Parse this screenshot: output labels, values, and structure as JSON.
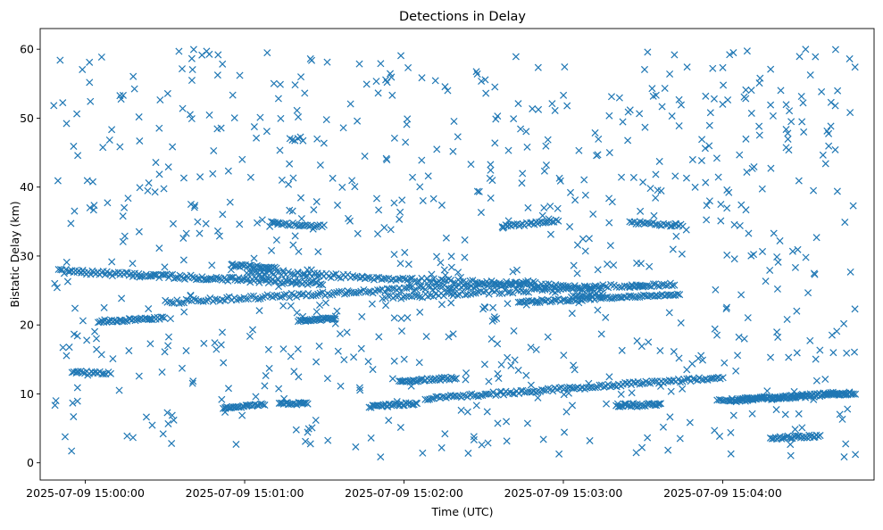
{
  "chart_data": {
    "type": "scatter",
    "title": "Detections in Delay",
    "xlabel": "Time (UTC)",
    "ylabel": "Bistatic Delay (km)",
    "marker": "x",
    "color": "#1f77b4",
    "grid": false,
    "xlim_seconds": [
      -17,
      297
    ],
    "ylim": [
      -2.5,
      63
    ],
    "x_tick_seconds": [
      0,
      60,
      120,
      180,
      240
    ],
    "x_tick_labels": [
      "2025-07-09 15:00:00",
      "2025-07-09 15:01:00",
      "2025-07-09 15:02:00",
      "2025-07-09 15:03:00",
      "2025-07-09 15:04:00"
    ],
    "y_ticks": [
      0,
      10,
      20,
      30,
      40,
      50,
      60
    ],
    "tracks": [
      {
        "x": [
          -10,
          90
        ],
        "y": [
          27.8,
          26.0
        ],
        "step": 0.7,
        "jitter": 0.3
      },
      {
        "x": [
          62,
          195
        ],
        "y": [
          27.7,
          25.3
        ],
        "step": 0.9,
        "jitter": 0.3
      },
      {
        "x": [
          30,
          170
        ],
        "y": [
          23.3,
          26.2
        ],
        "step": 0.9,
        "jitter": 0.3
      },
      {
        "x": [
          112,
          210
        ],
        "y": [
          24.0,
          25.8
        ],
        "step": 1.0,
        "jitter": 0.3
      },
      {
        "x": [
          163,
          224
        ],
        "y": [
          23.3,
          24.4
        ],
        "step": 0.8,
        "jitter": 0.2
      },
      {
        "x": [
          5,
          30
        ],
        "y": [
          20.5,
          21.0
        ],
        "step": 0.6,
        "jitter": 0.2
      },
      {
        "x": [
          80,
          94
        ],
        "y": [
          20.6,
          21.0
        ],
        "step": 0.5,
        "jitter": 0.2
      },
      {
        "x": [
          -5,
          10
        ],
        "y": [
          13.2,
          13.0
        ],
        "step": 0.8,
        "jitter": 0.2
      },
      {
        "x": [
          52,
          68
        ],
        "y": [
          8.0,
          8.5
        ],
        "step": 0.6,
        "jitter": 0.2
      },
      {
        "x": [
          73,
          84
        ],
        "y": [
          8.6,
          8.6
        ],
        "step": 0.6,
        "jitter": 0.2
      },
      {
        "x": [
          107,
          125
        ],
        "y": [
          8.2,
          8.6
        ],
        "step": 0.6,
        "jitter": 0.2
      },
      {
        "x": [
          118,
          140
        ],
        "y": [
          11.8,
          12.3
        ],
        "step": 0.6,
        "jitter": 0.2
      },
      {
        "x": [
          128,
          240
        ],
        "y": [
          9.3,
          12.4
        ],
        "step": 0.8,
        "jitter": 0.25
      },
      {
        "x": [
          200,
          217
        ],
        "y": [
          8.3,
          8.5
        ],
        "step": 0.6,
        "jitter": 0.2
      },
      {
        "x": [
          238,
          288
        ],
        "y": [
          9.0,
          10.2
        ],
        "step": 0.7,
        "jitter": 0.2
      },
      {
        "x": [
          243,
          290
        ],
        "y": [
          9.0,
          10.1
        ],
        "step": 0.7,
        "jitter": 0.2
      },
      {
        "x": [
          258,
          277
        ],
        "y": [
          3.6,
          3.9
        ],
        "step": 0.6,
        "jitter": 0.2
      },
      {
        "x": [
          157,
          178
        ],
        "y": [
          34.3,
          35.1
        ],
        "step": 0.7,
        "jitter": 0.2
      },
      {
        "x": [
          55,
          72
        ],
        "y": [
          28.7,
          28.2
        ],
        "step": 0.6,
        "jitter": 0.2
      },
      {
        "x": [
          70,
          90
        ],
        "y": [
          34.8,
          34.3
        ],
        "step": 0.8,
        "jitter": 0.2
      },
      {
        "x": [
          205,
          225
        ],
        "y": [
          34.9,
          34.4
        ],
        "step": 0.8,
        "jitter": 0.2
      },
      {
        "x": [
          205,
          222
        ],
        "y": [
          25.6,
          25.9
        ],
        "step": 0.8,
        "jitter": 0.2
      },
      {
        "x": [
          183,
          195
        ],
        "y": [
          24.2,
          24.4
        ],
        "step": 0.8,
        "jitter": 0.2
      },
      {
        "x": [
          77,
          82
        ],
        "y": [
          47.0,
          47.0
        ],
        "step": 1.0,
        "jitter": 0.3
      }
    ],
    "noise": {
      "count": 760,
      "x_range": [
        -12,
        290
      ],
      "y_range": [
        0.5,
        60
      ],
      "seed": 7
    }
  }
}
